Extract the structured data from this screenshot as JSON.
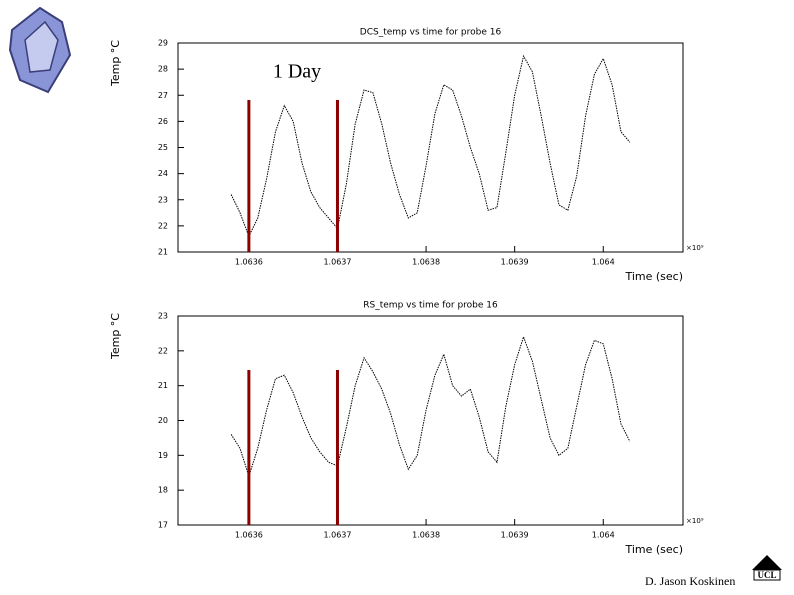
{
  "chart_data": [
    {
      "type": "line",
      "title": "DCS_temp vs time for probe 16",
      "ylabel": "Temp °C",
      "xlabel": "Time (sec)",
      "xexponent": "×10⁹",
      "annotation": "1 Day",
      "color": "#000000",
      "vline_color": "#8b0000",
      "vlines": [
        1.0636,
        1.0637
      ],
      "xlim": [
        1.06352,
        1.06409
      ],
      "xticks": [
        1.0636,
        1.0637,
        1.0638,
        1.0639,
        1.064
      ],
      "ylim": [
        21,
        29
      ],
      "yticks": [
        21,
        22,
        23,
        24,
        25,
        26,
        27,
        28,
        29
      ],
      "x": [
        1.06358,
        1.06359,
        1.0636,
        1.06361,
        1.06362,
        1.06363,
        1.06364,
        1.06365,
        1.06366,
        1.06367,
        1.06368,
        1.06369,
        1.0637,
        1.06371,
        1.06372,
        1.06373,
        1.06374,
        1.06375,
        1.06376,
        1.06377,
        1.06378,
        1.06379,
        1.0638,
        1.06381,
        1.06382,
        1.06383,
        1.06384,
        1.06385,
        1.06386,
        1.06387,
        1.06388,
        1.06389,
        1.0639,
        1.06391,
        1.06392,
        1.06393,
        1.06394,
        1.06395,
        1.06396,
        1.06397,
        1.06398,
        1.06399,
        1.064,
        1.06401,
        1.06402,
        1.06403
      ],
      "values": [
        23.2,
        22.5,
        21.6,
        22.3,
        23.8,
        25.6,
        26.6,
        26.0,
        24.4,
        23.3,
        22.7,
        22.3,
        21.9,
        23.6,
        25.9,
        27.2,
        27.1,
        25.9,
        24.4,
        23.2,
        22.3,
        22.5,
        24.3,
        26.3,
        27.4,
        27.2,
        26.2,
        25.0,
        24.0,
        22.6,
        22.7,
        24.8,
        27.0,
        28.5,
        27.9,
        26.2,
        24.4,
        22.8,
        22.6,
        23.9,
        26.2,
        27.8,
        28.4,
        27.4,
        25.6,
        25.2
      ]
    },
    {
      "type": "line",
      "title": "RS_temp vs time for probe 16",
      "ylabel": "Temp °C",
      "xlabel": "Time (sec)",
      "xexponent": "×10⁹",
      "color": "#000000",
      "vline_color": "#8b0000",
      "vlines": [
        1.0636,
        1.0637
      ],
      "xlim": [
        1.06352,
        1.06409
      ],
      "xticks": [
        1.0636,
        1.0637,
        1.0638,
        1.0639,
        1.064
      ],
      "ylim": [
        17,
        23
      ],
      "yticks": [
        17,
        18,
        19,
        20,
        21,
        22,
        23
      ],
      "x": [
        1.06358,
        1.06359,
        1.0636,
        1.06361,
        1.06362,
        1.06363,
        1.06364,
        1.06365,
        1.06366,
        1.06367,
        1.06368,
        1.06369,
        1.0637,
        1.06371,
        1.06372,
        1.06373,
        1.06374,
        1.06375,
        1.06376,
        1.06377,
        1.06378,
        1.06379,
        1.0638,
        1.06381,
        1.06382,
        1.06383,
        1.06384,
        1.06385,
        1.06386,
        1.06387,
        1.06388,
        1.06389,
        1.0639,
        1.06391,
        1.06392,
        1.06393,
        1.06394,
        1.06395,
        1.06396,
        1.06397,
        1.06398,
        1.06399,
        1.064,
        1.06401,
        1.06402,
        1.06403
      ],
      "values": [
        19.6,
        19.2,
        18.4,
        19.2,
        20.3,
        21.2,
        21.3,
        20.8,
        20.1,
        19.5,
        19.1,
        18.8,
        18.7,
        19.8,
        21.0,
        21.8,
        21.4,
        20.9,
        20.2,
        19.3,
        18.6,
        19.0,
        20.3,
        21.3,
        21.9,
        21.0,
        20.7,
        20.9,
        20.1,
        19.1,
        18.8,
        20.4,
        21.6,
        22.4,
        21.7,
        20.6,
        19.5,
        19.0,
        19.2,
        20.4,
        21.6,
        22.3,
        22.2,
        21.2,
        19.9,
        19.4
      ]
    }
  ],
  "author": "D. Jason Koskinen",
  "logo": "UCL"
}
